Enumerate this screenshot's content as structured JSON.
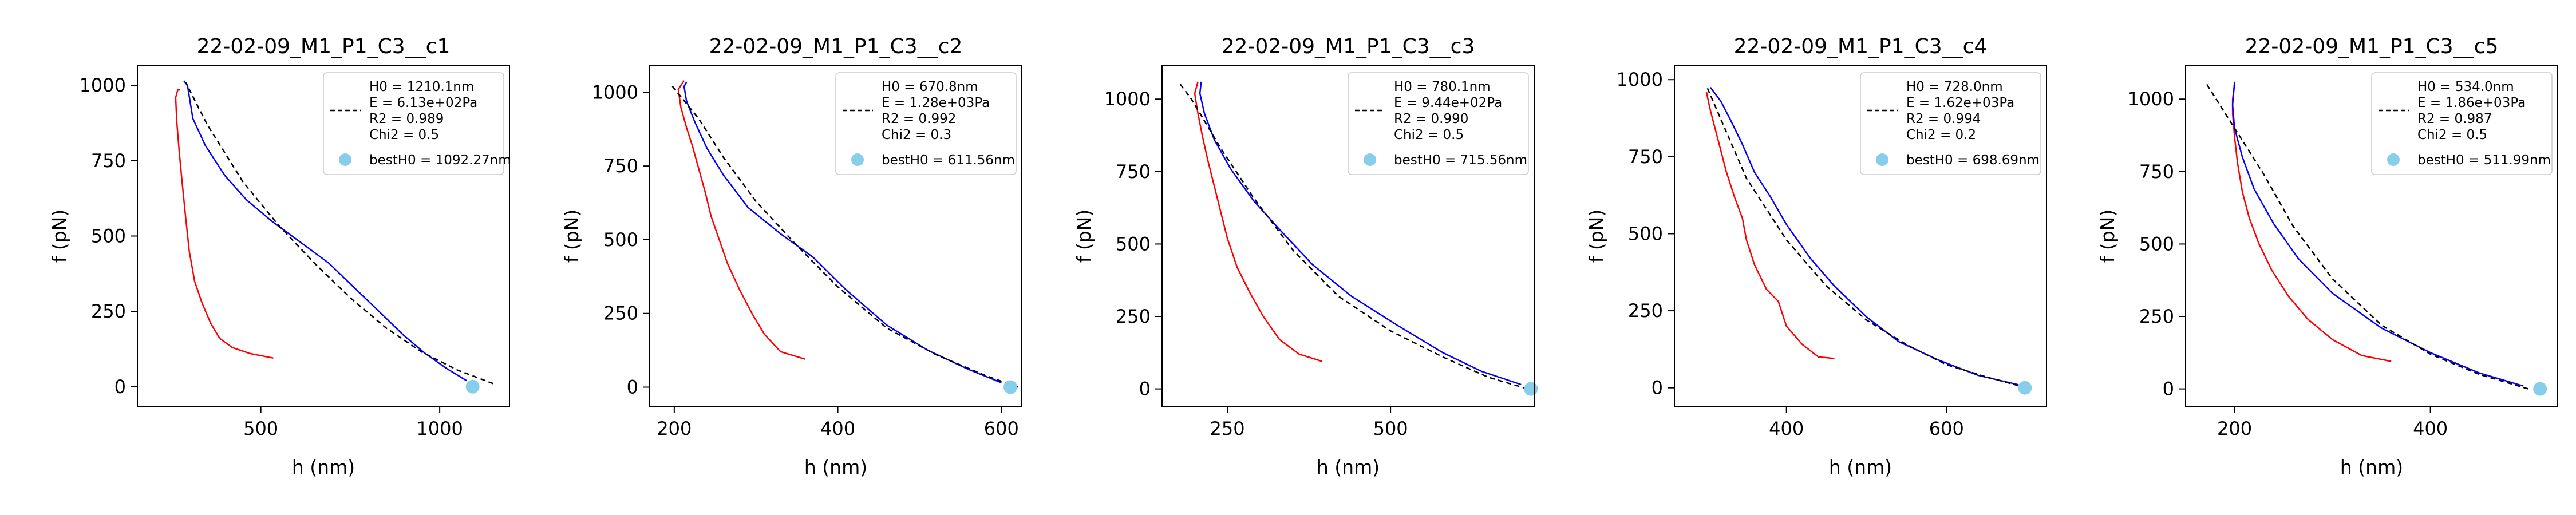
{
  "chart_data": [
    {
      "type": "line",
      "title": "22-02-09_M1_P1_C3__c1",
      "xlabel": "h (nm)",
      "ylabel": "f (pN)",
      "xlim": [
        155,
        1195
      ],
      "ylim": [
        -65,
        1065
      ],
      "xticks": [
        500,
        1000
      ],
      "yticks": [
        0,
        250,
        500,
        750,
        1000
      ],
      "legend_position": "upper right",
      "legend": [
        "H0 = 1210.1nm",
        "E = 6.13e+02Pa",
        "R2 = 0.989",
        "Chi2 = 0.5",
        "bestH0 = 1092.27nm"
      ],
      "best_point": {
        "x": 1092,
        "y": 0
      },
      "series": [
        {
          "role": "approach",
          "color": "#ff0000",
          "points": [
            [
              535,
              95
            ],
            [
              470,
              110
            ],
            [
              420,
              130
            ],
            [
              385,
              160
            ],
            [
              360,
              210
            ],
            [
              335,
              280
            ],
            [
              315,
              350
            ],
            [
              300,
              450
            ],
            [
              290,
              560
            ],
            [
              280,
              680
            ],
            [
              272,
              780
            ],
            [
              265,
              880
            ],
            [
              262,
              960
            ],
            [
              268,
              985
            ],
            [
              275,
              985
            ]
          ]
        },
        {
          "role": "retract",
          "color": "#0000ff",
          "points": [
            [
              1075,
              20
            ],
            [
              1020,
              60
            ],
            [
              960,
              110
            ],
            [
              900,
              170
            ],
            [
              830,
              250
            ],
            [
              760,
              330
            ],
            [
              690,
              410
            ],
            [
              610,
              480
            ],
            [
              530,
              550
            ],
            [
              460,
              620
            ],
            [
              400,
              700
            ],
            [
              345,
              800
            ],
            [
              310,
              890
            ],
            [
              295,
              1000
            ],
            [
              285,
              1015
            ]
          ]
        },
        {
          "role": "fit",
          "color": "#000000",
          "dashed": true,
          "points": [
            [
              1150,
              10
            ],
            [
              1050,
              55
            ],
            [
              950,
              115
            ],
            [
              850,
              195
            ],
            [
              750,
              295
            ],
            [
              650,
              410
            ],
            [
              550,
              535
            ],
            [
              450,
              680
            ],
            [
              350,
              870
            ],
            [
              290,
              1010
            ]
          ]
        }
      ]
    },
    {
      "type": "line",
      "title": "22-02-09_M1_P1_C3__c2",
      "xlabel": "h (nm)",
      "ylabel": "f (pN)",
      "xlim": [
        170,
        625
      ],
      "ylim": [
        -65,
        1090
      ],
      "xticks": [
        200,
        400,
        600
      ],
      "yticks": [
        0,
        250,
        500,
        750,
        1000
      ],
      "legend_position": "upper right",
      "legend": [
        "H0 = 670.8nm",
        "E = 1.28e+03Pa",
        "R2 = 0.992",
        "Chi2 = 0.3",
        "bestH0 = 611.56nm"
      ],
      "best_point": {
        "x": 611,
        "y": 0
      },
      "series": [
        {
          "role": "approach",
          "color": "#ff0000",
          "points": [
            [
              360,
              95
            ],
            [
              330,
              120
            ],
            [
              310,
              180
            ],
            [
              295,
              250
            ],
            [
              280,
              330
            ],
            [
              265,
              420
            ],
            [
              255,
              500
            ],
            [
              245,
              580
            ],
            [
              238,
              660
            ],
            [
              230,
              740
            ],
            [
              222,
              820
            ],
            [
              215,
              880
            ],
            [
              208,
              950
            ],
            [
              205,
              1010
            ],
            [
              212,
              1040
            ]
          ]
        },
        {
          "role": "retract",
          "color": "#0000ff",
          "points": [
            [
              600,
              15
            ],
            [
              560,
              60
            ],
            [
              510,
              125
            ],
            [
              460,
              210
            ],
            [
              410,
              330
            ],
            [
              370,
              440
            ],
            [
              330,
              520
            ],
            [
              290,
              610
            ],
            [
              260,
              720
            ],
            [
              240,
              810
            ],
            [
              225,
              900
            ],
            [
              215,
              970
            ],
            [
              212,
              1020
            ],
            [
              215,
              1035
            ]
          ]
        },
        {
          "role": "fit",
          "color": "#000000",
          "dashed": true,
          "points": [
            [
              620,
              0
            ],
            [
              580,
              40
            ],
            [
              520,
              110
            ],
            [
              460,
              200
            ],
            [
              400,
              340
            ],
            [
              350,
              480
            ],
            [
              300,
              630
            ],
            [
              260,
              780
            ],
            [
              230,
              910
            ],
            [
              195,
              1030
            ]
          ]
        }
      ]
    },
    {
      "type": "line",
      "title": "22-02-09_M1_P1_C3__c3",
      "xlabel": "h (nm)",
      "ylabel": "f (pN)",
      "xlim": [
        150,
        720
      ],
      "ylim": [
        -60,
        1115
      ],
      "xticks": [
        250,
        500
      ],
      "yticks": [
        0,
        250,
        500,
        750,
        1000
      ],
      "legend_position": "upper right",
      "legend": [
        "H0 = 780.1nm",
        "E = 9.44e+02Pa",
        "R2 = 0.990",
        "Chi2 = 0.5",
        "bestH0 = 715.56nm"
      ],
      "best_point": {
        "x": 715,
        "y": 0
      },
      "series": [
        {
          "role": "approach",
          "color": "#ff0000",
          "points": [
            [
              395,
              95
            ],
            [
              360,
              120
            ],
            [
              330,
              170
            ],
            [
              305,
              250
            ],
            [
              285,
              330
            ],
            [
              265,
              420
            ],
            [
              250,
              520
            ],
            [
              240,
              610
            ],
            [
              230,
              700
            ],
            [
              220,
              790
            ],
            [
              212,
              870
            ],
            [
              205,
              950
            ],
            [
              200,
              1020
            ],
            [
              205,
              1060
            ]
          ]
        },
        {
          "role": "retract",
          "color": "#0000ff",
          "points": [
            [
              700,
              15
            ],
            [
              640,
              60
            ],
            [
              580,
              125
            ],
            [
              510,
              220
            ],
            [
              440,
              320
            ],
            [
              380,
              430
            ],
            [
              330,
              550
            ],
            [
              290,
              650
            ],
            [
              255,
              760
            ],
            [
              230,
              860
            ],
            [
              215,
              950
            ],
            [
              208,
              1020
            ],
            [
              210,
              1060
            ]
          ]
        },
        {
          "role": "fit",
          "color": "#000000",
          "dashed": true,
          "points": [
            [
              710,
              0
            ],
            [
              650,
              40
            ],
            [
              580,
              110
            ],
            [
              500,
              200
            ],
            [
              420,
              320
            ],
            [
              350,
              480
            ],
            [
              290,
              660
            ],
            [
              240,
              830
            ],
            [
              195,
              1000
            ],
            [
              175,
              1060
            ]
          ]
        }
      ]
    },
    {
      "type": "line",
      "title": "22-02-09_M1_P1_C3__c4",
      "xlabel": "h (nm)",
      "ylabel": "f (pN)",
      "xlim": [
        260,
        725
      ],
      "ylim": [
        -60,
        1045
      ],
      "xticks": [
        400,
        600
      ],
      "yticks": [
        0,
        250,
        500,
        750,
        1000
      ],
      "legend_position": "upper right",
      "legend": [
        "H0 = 728.0nm",
        "E = 1.62e+03Pa",
        "R2 = 0.994",
        "Chi2 = 0.2",
        "bestH0 = 698.69nm"
      ],
      "best_point": {
        "x": 698,
        "y": 0
      },
      "series": [
        {
          "role": "approach",
          "color": "#ff0000",
          "points": [
            [
              460,
              95
            ],
            [
              440,
              100
            ],
            [
              420,
              140
            ],
            [
              400,
              200
            ],
            [
              390,
              280
            ],
            [
              375,
              320
            ],
            [
              360,
              400
            ],
            [
              350,
              480
            ],
            [
              345,
              550
            ],
            [
              335,
              620
            ],
            [
              325,
              700
            ],
            [
              315,
              800
            ],
            [
              305,
              900
            ],
            [
              300,
              960
            ]
          ]
        },
        {
          "role": "retract",
          "color": "#0000ff",
          "points": [
            [
              690,
              10
            ],
            [
              640,
              40
            ],
            [
              590,
              90
            ],
            [
              540,
              150
            ],
            [
              500,
              230
            ],
            [
              460,
              330
            ],
            [
              430,
              420
            ],
            [
              400,
              530
            ],
            [
              380,
              620
            ],
            [
              360,
              700
            ],
            [
              345,
              790
            ],
            [
              330,
              870
            ],
            [
              318,
              930
            ],
            [
              305,
              975
            ]
          ]
        },
        {
          "role": "fit",
          "color": "#000000",
          "dashed": true,
          "points": [
            [
              700,
              0
            ],
            [
              650,
              35
            ],
            [
              600,
              75
            ],
            [
              550,
              140
            ],
            [
              500,
              220
            ],
            [
              450,
              330
            ],
            [
              400,
              480
            ],
            [
              350,
              680
            ],
            [
              300,
              980
            ]
          ]
        }
      ]
    },
    {
      "type": "line",
      "title": "22-02-09_M1_P1_C3__c5",
      "xlabel": "h (nm)",
      "ylabel": "f (pN)",
      "xlim": [
        150,
        530
      ],
      "ylim": [
        -60,
        1115
      ],
      "xticks": [
        200,
        400
      ],
      "yticks": [
        0,
        250,
        500,
        750,
        1000
      ],
      "legend_position": "upper right",
      "legend": [
        "H0 = 534.0nm",
        "E = 1.86e+03Pa",
        "R2 = 0.987",
        "Chi2 = 0.5",
        "bestH0 = 511.99nm"
      ],
      "best_point": {
        "x": 512,
        "y": 0
      },
      "series": [
        {
          "role": "approach",
          "color": "#ff0000",
          "points": [
            [
              360,
              95
            ],
            [
              330,
              115
            ],
            [
              300,
              170
            ],
            [
              275,
              240
            ],
            [
              255,
              320
            ],
            [
              238,
              410
            ],
            [
              225,
              500
            ],
            [
              215,
              590
            ],
            [
              208,
              680
            ],
            [
              203,
              780
            ],
            [
              200,
              870
            ],
            [
              198,
              950
            ],
            [
              198,
              1000
            ],
            [
              200,
              1050
            ]
          ]
        },
        {
          "role": "retract",
          "color": "#0000ff",
          "points": [
            [
              495,
              10
            ],
            [
              450,
              55
            ],
            [
              400,
              125
            ],
            [
              350,
              210
            ],
            [
              300,
              330
            ],
            [
              265,
              450
            ],
            [
              240,
              570
            ],
            [
              220,
              690
            ],
            [
              208,
              800
            ],
            [
              200,
              900
            ],
            [
              198,
              980
            ],
            [
              200,
              1060
            ]
          ]
        },
        {
          "role": "fit",
          "color": "#000000",
          "dashed": true,
          "points": [
            [
              500,
              0
            ],
            [
              450,
              50
            ],
            [
              400,
              120
            ],
            [
              350,
              220
            ],
            [
              300,
              380
            ],
            [
              260,
              560
            ],
            [
              230,
              740
            ],
            [
              200,
              900
            ],
            [
              170,
              1060
            ]
          ]
        }
      ]
    }
  ]
}
